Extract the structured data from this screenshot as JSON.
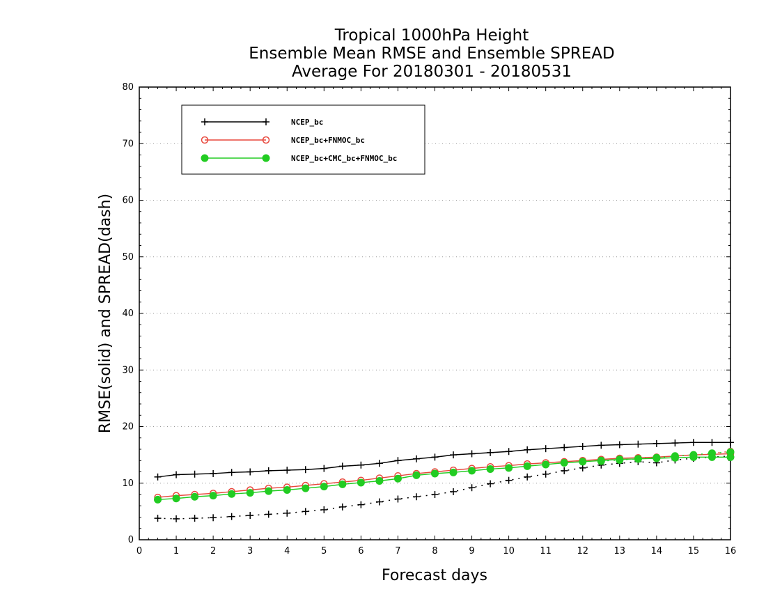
{
  "chart_data": {
    "type": "line",
    "title": [
      "Tropical 1000hPa Height",
      "Ensemble Mean RMSE and Ensemble SPREAD",
      "Average For 20180301 - 20180531"
    ],
    "xlabel": "Forecast days",
    "ylabel": "RMSE(solid) and SPREAD(dash)",
    "xlim": [
      0,
      16
    ],
    "ylim": [
      0,
      80
    ],
    "xticks": [
      "0",
      "1",
      "2",
      "3",
      "4",
      "5",
      "6",
      "7",
      "8",
      "9",
      "10",
      "11",
      "12",
      "13",
      "14",
      "15",
      "16"
    ],
    "yticks": [
      "0",
      "10",
      "20",
      "30",
      "40",
      "50",
      "60",
      "70",
      "80"
    ],
    "grid": true,
    "legend_position": "top-left",
    "x": [
      0.5,
      1,
      1.5,
      2,
      2.5,
      3,
      3.5,
      4,
      4.5,
      5,
      5.5,
      6,
      6.5,
      7,
      7.5,
      8,
      8.5,
      9,
      9.5,
      10,
      10.5,
      11,
      11.5,
      12,
      12.5,
      13,
      13.5,
      14,
      14.5,
      15,
      15.5,
      16
    ],
    "series": [
      {
        "name": "NCEP_bc",
        "color": "#000000",
        "marker": "plus",
        "rmse": [
          11.1,
          11.5,
          11.6,
          11.7,
          11.9,
          12.0,
          12.2,
          12.3,
          12.4,
          12.6,
          13.0,
          13.2,
          13.5,
          14.0,
          14.3,
          14.6,
          15.0,
          15.2,
          15.4,
          15.6,
          15.9,
          16.1,
          16.3,
          16.5,
          16.7,
          16.8,
          16.9,
          17.0,
          17.1,
          17.2,
          17.2,
          17.2
        ],
        "spread": [
          3.8,
          3.7,
          3.8,
          3.9,
          4.1,
          4.3,
          4.5,
          4.7,
          5.0,
          5.3,
          5.8,
          6.2,
          6.7,
          7.2,
          7.6,
          8.0,
          8.5,
          9.2,
          9.9,
          10.5,
          11.1,
          11.6,
          12.2,
          12.7,
          13.2,
          13.5,
          13.8,
          13.6,
          14.1,
          14.4,
          14.6,
          14.8
        ]
      },
      {
        "name": "NCEP_bc+FNMOC_bc",
        "color": "#e8473c",
        "marker": "open-circle",
        "rmse": [
          7.5,
          7.8,
          8.0,
          8.2,
          8.5,
          8.8,
          9.1,
          9.3,
          9.6,
          9.9,
          10.2,
          10.5,
          10.9,
          11.3,
          11.7,
          12.0,
          12.3,
          12.6,
          12.9,
          13.1,
          13.4,
          13.6,
          13.8,
          14.0,
          14.2,
          14.4,
          14.5,
          14.6,
          14.8,
          15.0,
          15.1,
          15.2
        ],
        "spread": [
          null,
          null,
          null,
          null,
          null,
          null,
          null,
          null,
          null,
          null,
          null,
          null,
          null,
          null,
          null,
          null,
          null,
          null,
          null,
          null,
          null,
          null,
          null,
          null,
          null,
          null,
          null,
          null,
          null,
          null,
          15.3,
          15.6
        ]
      },
      {
        "name": "NCEP_bc+CMC_bc+FNMOC_bc",
        "color": "#22cc22",
        "marker": "filled-circle",
        "rmse": [
          7.1,
          7.3,
          7.6,
          7.8,
          8.1,
          8.3,
          8.6,
          8.8,
          9.1,
          9.4,
          9.8,
          10.1,
          10.4,
          10.8,
          11.4,
          11.7,
          11.9,
          12.2,
          12.5,
          12.7,
          13.0,
          13.3,
          13.6,
          13.8,
          14.0,
          14.2,
          14.3,
          14.4,
          14.5,
          14.6,
          14.6,
          14.6
        ],
        "spread": [
          null,
          null,
          null,
          null,
          null,
          null,
          null,
          null,
          null,
          null,
          null,
          null,
          null,
          null,
          null,
          null,
          null,
          null,
          null,
          null,
          null,
          null,
          null,
          null,
          13.9,
          14.1,
          14.3,
          14.5,
          14.8,
          15.0,
          15.3,
          15.5
        ]
      }
    ]
  }
}
